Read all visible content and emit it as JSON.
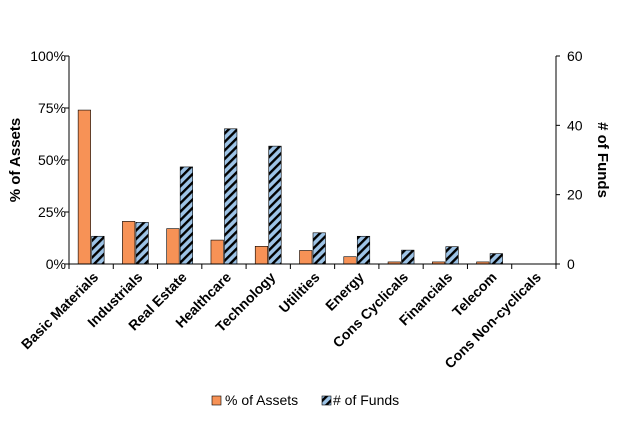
{
  "chart_data": {
    "type": "bar",
    "categories": [
      "Basic Materials",
      "Industrials",
      "Real Estate",
      "Healthcare",
      "Technology",
      "Utilities",
      "Energy",
      "Cons Cyclicals",
      "Financials",
      "Telecom",
      "Cons Non-cyclicals"
    ],
    "series": [
      {
        "name": "% of Assets",
        "axis": "left",
        "color": "#F79256",
        "values": [
          74,
          20.5,
          17,
          11.5,
          8.5,
          6.5,
          3.5,
          1,
          1,
          1,
          0
        ]
      },
      {
        "name": "# of Funds",
        "axis": "right",
        "color": "#9DC3E6",
        "pattern": "diagonal-stripes-black",
        "values": [
          8,
          12,
          28,
          39,
          34,
          9,
          8,
          4,
          5,
          3,
          0
        ]
      }
    ],
    "ylabel_left": "% of Assets",
    "ylabel_right": "# of Funds",
    "ylim_left": [
      0,
      100
    ],
    "ylim_right": [
      0,
      60
    ],
    "yticks_left": [
      "0%",
      "25%",
      "50%",
      "75%",
      "100%"
    ],
    "yticks_right": [
      "0",
      "20",
      "40",
      "60"
    ],
    "legend": [
      "% of Assets",
      "# of Funds"
    ],
    "legend_position": "bottom",
    "grid": false
  }
}
